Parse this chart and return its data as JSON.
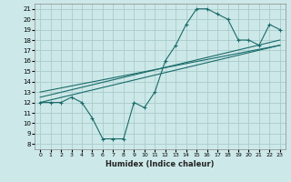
{
  "xlabel": "Humidex (Indice chaleur)",
  "ylabel": "",
  "bg_color": "#cde8e8",
  "line_color": "#1a6b6b",
  "grid_color": "#aacccc",
  "xlim": [
    -0.5,
    23.5
  ],
  "ylim": [
    7.5,
    21.5
  ],
  "xticks": [
    0,
    1,
    2,
    3,
    4,
    5,
    6,
    7,
    8,
    9,
    10,
    11,
    12,
    13,
    14,
    15,
    16,
    17,
    18,
    19,
    20,
    21,
    22,
    23
  ],
  "yticks": [
    8,
    9,
    10,
    11,
    12,
    13,
    14,
    15,
    16,
    17,
    18,
    19,
    20,
    21
  ],
  "main_x": [
    0,
    1,
    2,
    3,
    4,
    5,
    6,
    7,
    8,
    9,
    10,
    11,
    12,
    13,
    14,
    15,
    16,
    17,
    18,
    19,
    20,
    21,
    22,
    23
  ],
  "main_y": [
    12.0,
    12.0,
    12.0,
    12.5,
    12.0,
    10.5,
    8.5,
    8.5,
    8.5,
    12.0,
    11.5,
    13.0,
    16.0,
    17.5,
    19.5,
    21.0,
    21.0,
    20.5,
    20.0,
    18.0,
    18.0,
    17.5,
    19.5,
    19.0
  ],
  "line1_x": [
    0,
    23
  ],
  "line1_y": [
    12.0,
    17.5
  ],
  "line2_x": [
    0,
    23
  ],
  "line2_y": [
    12.5,
    18.0
  ],
  "line3_x": [
    0,
    23
  ],
  "line3_y": [
    13.0,
    17.5
  ]
}
